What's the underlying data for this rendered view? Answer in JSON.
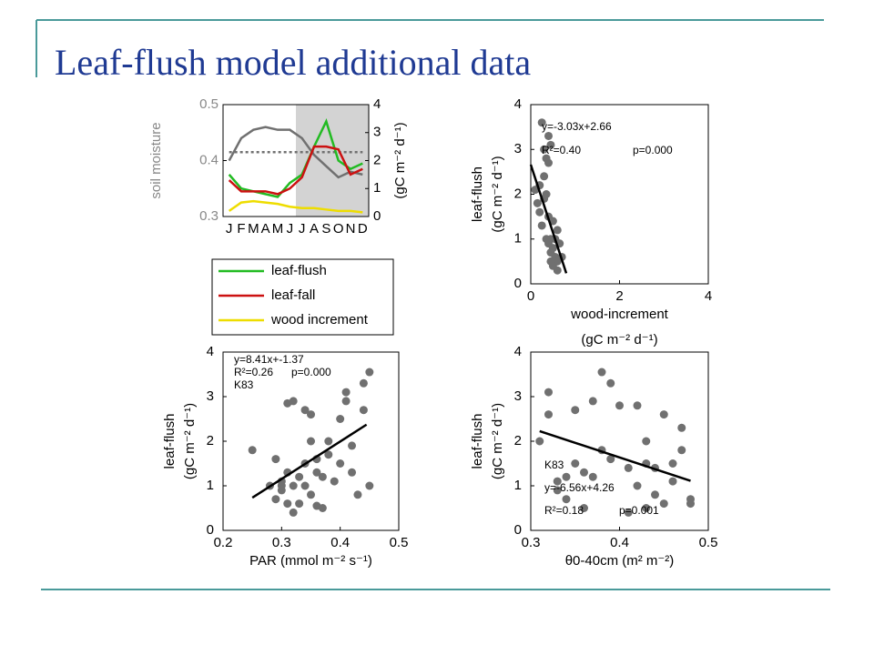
{
  "title": "Leaf-flush model additional data",
  "chart_data": [
    {
      "type": "line",
      "categories": [
        "J",
        "F",
        "M",
        "A",
        "M",
        "J",
        "J",
        "A",
        "S",
        "O",
        "N",
        "D"
      ],
      "ylabel": "soil moisture",
      "y2label": "(gC m⁻² d⁻¹)",
      "ylim": [
        0.3,
        0.5
      ],
      "yticks": [
        0.3,
        0.4,
        0.5
      ],
      "y2lim": [
        0,
        4
      ],
      "y2ticks": [
        0,
        1,
        2,
        3,
        4
      ],
      "shaded": [
        6,
        11
      ],
      "series": [
        {
          "color": "#707070",
          "values": [
            0.4,
            0.44,
            0.455,
            0.46,
            0.455,
            0.455,
            0.44,
            0.41,
            0.39,
            0.37,
            0.38,
            0.375
          ]
        },
        {
          "color": "#707070",
          "dashed": true,
          "values": [
            0.415,
            0.415,
            0.415,
            0.415,
            0.415,
            0.415,
            0.415,
            0.415,
            0.415,
            0.415,
            0.415,
            0.415
          ]
        },
        {
          "name": "leaf-flush",
          "color": "#22bb22",
          "axis": "y2",
          "values": [
            1.5,
            1.0,
            0.9,
            0.8,
            0.7,
            1.2,
            1.5,
            2.5,
            3.4,
            2.0,
            1.7,
            1.9
          ]
        },
        {
          "name": "leaf-fall",
          "color": "#cc1111",
          "axis": "y2",
          "values": [
            1.3,
            0.9,
            0.9,
            0.9,
            0.8,
            1.0,
            1.4,
            2.5,
            2.5,
            2.4,
            1.5,
            1.7
          ]
        },
        {
          "name": "wood increment",
          "color": "#eedd00",
          "axis": "y2",
          "values": [
            0.2,
            0.5,
            0.55,
            0.5,
            0.45,
            0.35,
            0.3,
            0.3,
            0.25,
            0.2,
            0.2,
            0.15
          ]
        }
      ]
    },
    {
      "type": "scatter",
      "color": "#707070",
      "xlabel": "wood-increment",
      "xlabel2": "(gC m⁻² d⁻¹)",
      "ylabel": "leaf-flush",
      "ylabel2": "(gC m⁻² d⁻¹)",
      "xlim": [
        0,
        4
      ],
      "xticks": [
        0,
        2,
        4
      ],
      "ylim": [
        0,
        4
      ],
      "yticks": [
        0,
        1,
        2,
        3,
        4
      ],
      "annotations": [
        "y=-3.03x+2.66",
        "R²=0.40",
        "p=0.000"
      ],
      "fit": {
        "slope": -3.03,
        "intercept": 2.66,
        "x_range": [
          0,
          0.8
        ]
      },
      "x": [
        0.1,
        0.15,
        0.2,
        0.25,
        0.3,
        0.35,
        0.4,
        0.45,
        0.3,
        0.2,
        0.25,
        0.35,
        0.4,
        0.45,
        0.5,
        0.55,
        0.6,
        0.5,
        0.45,
        0.55,
        0.6,
        0.65,
        0.7,
        0.4,
        0.3,
        0.5,
        0.35,
        0.6,
        0.45,
        0.4
      ],
      "values": [
        2.1,
        1.8,
        2.2,
        3.6,
        3.0,
        2.8,
        2.7,
        3.1,
        2.4,
        1.6,
        1.3,
        1.0,
        0.9,
        1.0,
        0.8,
        0.6,
        0.5,
        0.4,
        0.5,
        1.0,
        1.2,
        0.9,
        0.6,
        1.5,
        1.9,
        1.4,
        2.0,
        0.3,
        0.7,
        3.3
      ]
    },
    {
      "type": "scatter",
      "color": "#707070",
      "xlabel": "PAR (mmol m⁻² s⁻¹)",
      "ylabel": "leaf-flush",
      "ylabel2": "(gC m⁻² d⁻¹)",
      "xlim": [
        0.2,
        0.5
      ],
      "xticks": [
        0.2,
        0.3,
        0.4,
        0.5
      ],
      "ylim": [
        0,
        4
      ],
      "yticks": [
        0,
        1,
        2,
        3,
        4
      ],
      "annotations": [
        "y=8.41x+-1.37",
        "R²=0.26",
        "p=0.000",
        "K83"
      ],
      "fit": {
        "slope": 8.41,
        "intercept": -1.37,
        "x_range": [
          0.25,
          0.445
        ]
      },
      "x": [
        0.25,
        0.28,
        0.29,
        0.29,
        0.3,
        0.3,
        0.31,
        0.31,
        0.31,
        0.32,
        0.32,
        0.33,
        0.33,
        0.34,
        0.34,
        0.35,
        0.35,
        0.35,
        0.36,
        0.36,
        0.37,
        0.37,
        0.38,
        0.38,
        0.39,
        0.4,
        0.4,
        0.41,
        0.41,
        0.42,
        0.42,
        0.43,
        0.44,
        0.44,
        0.45,
        0.45,
        0.3,
        0.32,
        0.36,
        0.34
      ],
      "values": [
        1.8,
        1.0,
        0.7,
        1.6,
        1.1,
        0.9,
        0.6,
        1.3,
        2.85,
        2.9,
        1.0,
        0.6,
        1.2,
        1.5,
        1.0,
        0.8,
        2.0,
        2.6,
        1.6,
        0.55,
        0.5,
        1.2,
        2.0,
        1.7,
        1.1,
        1.5,
        2.5,
        2.9,
        3.1,
        1.9,
        1.3,
        0.8,
        2.7,
        3.3,
        3.55,
        1.0,
        1.0,
        0.4,
        1.3,
        2.7
      ]
    },
    {
      "type": "scatter",
      "color": "#707070",
      "xlabel": "θ0-40cm (m² m⁻²)",
      "ylabel": "leaf-flush",
      "ylabel2": "(gC m⁻² d⁻¹)",
      "xlim": [
        0.3,
        0.5
      ],
      "xticks": [
        0.3,
        0.4,
        0.5
      ],
      "ylim": [
        0,
        4
      ],
      "yticks": [
        0,
        1,
        2,
        3,
        4
      ],
      "annotations": [
        "K83",
        "y=-6.56x+4.26",
        "R²=0.18",
        "p=0.001"
      ],
      "fit": {
        "slope": -6.56,
        "intercept": 4.26,
        "x_range": [
          0.31,
          0.48
        ]
      },
      "x": [
        0.31,
        0.32,
        0.32,
        0.33,
        0.33,
        0.34,
        0.35,
        0.35,
        0.36,
        0.36,
        0.37,
        0.37,
        0.38,
        0.38,
        0.39,
        0.39,
        0.4,
        0.41,
        0.42,
        0.42,
        0.43,
        0.43,
        0.44,
        0.44,
        0.45,
        0.45,
        0.46,
        0.46,
        0.47,
        0.47,
        0.48,
        0.48,
        0.43,
        0.41,
        0.34
      ],
      "values": [
        2.0,
        3.1,
        2.6,
        1.1,
        0.9,
        0.7,
        2.7,
        1.5,
        1.3,
        0.5,
        2.9,
        1.2,
        3.55,
        1.8,
        3.3,
        1.6,
        2.8,
        1.4,
        2.8,
        1.0,
        1.5,
        2.0,
        1.4,
        0.8,
        2.6,
        0.6,
        1.5,
        1.1,
        2.3,
        1.8,
        0.7,
        0.6,
        0.5,
        0.4,
        1.2
      ]
    }
  ]
}
